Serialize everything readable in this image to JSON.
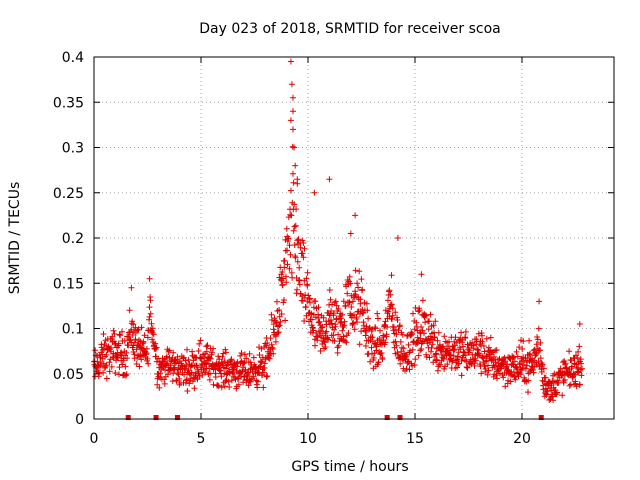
{
  "chart_data": {
    "type": "scatter",
    "title": "Day 023 of 2018, SRMTID for receiver scoa",
    "xlabel": "GPS time / hours",
    "ylabel": "SRMTID / TECUs",
    "xlim": [
      0,
      24.3
    ],
    "ylim": [
      0,
      0.4
    ],
    "x_ticks": [
      0,
      5,
      10,
      15,
      20
    ],
    "x_tick_labels": [
      "0",
      "5",
      "10",
      "15",
      "20"
    ],
    "y_ticks": [
      0,
      0.05,
      0.1,
      0.15,
      0.2,
      0.25,
      0.3,
      0.35,
      0.4
    ],
    "y_tick_labels": [
      "0",
      "0.05",
      "0.1",
      "0.15",
      "0.2",
      "0.25",
      "0.3",
      "0.35",
      "0.4"
    ],
    "grid": true,
    "marker": "+",
    "color": "#e00000",
    "series": [
      {
        "name": "SRMTID",
        "profile_x": [
          0,
          0.5,
          1.0,
          1.5,
          1.7,
          2.0,
          2.5,
          2.6,
          3.0,
          3.5,
          4.0,
          4.5,
          5.0,
          5.5,
          6.0,
          6.5,
          7.0,
          7.5,
          8.0,
          8.3,
          8.6,
          8.9,
          9.1,
          9.3,
          9.5,
          9.8,
          10.0,
          10.3,
          10.6,
          11.0,
          11.5,
          11.8,
          12.0,
          12.5,
          13.0,
          13.5,
          13.8,
          14.0,
          14.5,
          15.0,
          15.5,
          16.0,
          16.5,
          17.0,
          17.5,
          18.0,
          18.5,
          19.0,
          19.5,
          20.0,
          20.5,
          20.8,
          21.0,
          21.3,
          21.6,
          22.0,
          22.5,
          22.8
        ],
        "profile_y": [
          0.055,
          0.07,
          0.075,
          0.07,
          0.1,
          0.08,
          0.07,
          0.12,
          0.055,
          0.06,
          0.055,
          0.055,
          0.065,
          0.06,
          0.055,
          0.055,
          0.05,
          0.055,
          0.06,
          0.08,
          0.12,
          0.15,
          0.18,
          0.22,
          0.18,
          0.14,
          0.13,
          0.1,
          0.09,
          0.11,
          0.1,
          0.12,
          0.13,
          0.12,
          0.08,
          0.08,
          0.13,
          0.1,
          0.07,
          0.09,
          0.1,
          0.08,
          0.075,
          0.075,
          0.07,
          0.075,
          0.065,
          0.06,
          0.055,
          0.06,
          0.06,
          0.08,
          0.045,
          0.03,
          0.04,
          0.05,
          0.055,
          0.06
        ],
        "profile_spread": [
          0.02,
          0.025,
          0.025,
          0.025,
          0.03,
          0.025,
          0.02,
          0.03,
          0.02,
          0.02,
          0.02,
          0.02,
          0.025,
          0.02,
          0.02,
          0.02,
          0.02,
          0.02,
          0.025,
          0.03,
          0.04,
          0.05,
          0.07,
          0.08,
          0.06,
          0.05,
          0.04,
          0.035,
          0.03,
          0.035,
          0.035,
          0.04,
          0.045,
          0.04,
          0.03,
          0.03,
          0.04,
          0.035,
          0.025,
          0.03,
          0.035,
          0.03,
          0.025,
          0.025,
          0.025,
          0.025,
          0.025,
          0.02,
          0.02,
          0.025,
          0.025,
          0.03,
          0.02,
          0.015,
          0.02,
          0.02,
          0.02,
          0.02
        ],
        "time_range": [
          0,
          22.8
        ],
        "n_points": 1500,
        "outliers": [
          {
            "x": 9.2,
            "y": 0.395
          },
          {
            "x": 9.25,
            "y": 0.37
          },
          {
            "x": 9.3,
            "y": 0.355
          },
          {
            "x": 9.3,
            "y": 0.34
          },
          {
            "x": 9.2,
            "y": 0.33
          },
          {
            "x": 9.3,
            "y": 0.32
          },
          {
            "x": 9.35,
            "y": 0.3
          },
          {
            "x": 9.4,
            "y": 0.28
          },
          {
            "x": 9.5,
            "y": 0.265
          },
          {
            "x": 9.5,
            "y": 0.26
          },
          {
            "x": 10.3,
            "y": 0.25
          },
          {
            "x": 11.0,
            "y": 0.265
          },
          {
            "x": 12.2,
            "y": 0.225
          },
          {
            "x": 12.0,
            "y": 0.205
          },
          {
            "x": 14.2,
            "y": 0.2
          },
          {
            "x": 15.3,
            "y": 0.16
          },
          {
            "x": 2.6,
            "y": 0.155
          },
          {
            "x": 1.75,
            "y": 0.145
          },
          {
            "x": 20.8,
            "y": 0.13
          },
          {
            "x": 22.7,
            "y": 0.105
          }
        ]
      }
    ],
    "rug_marks_x": [
      1.6,
      2.9,
      3.9,
      13.7,
      14.3,
      20.9
    ]
  }
}
